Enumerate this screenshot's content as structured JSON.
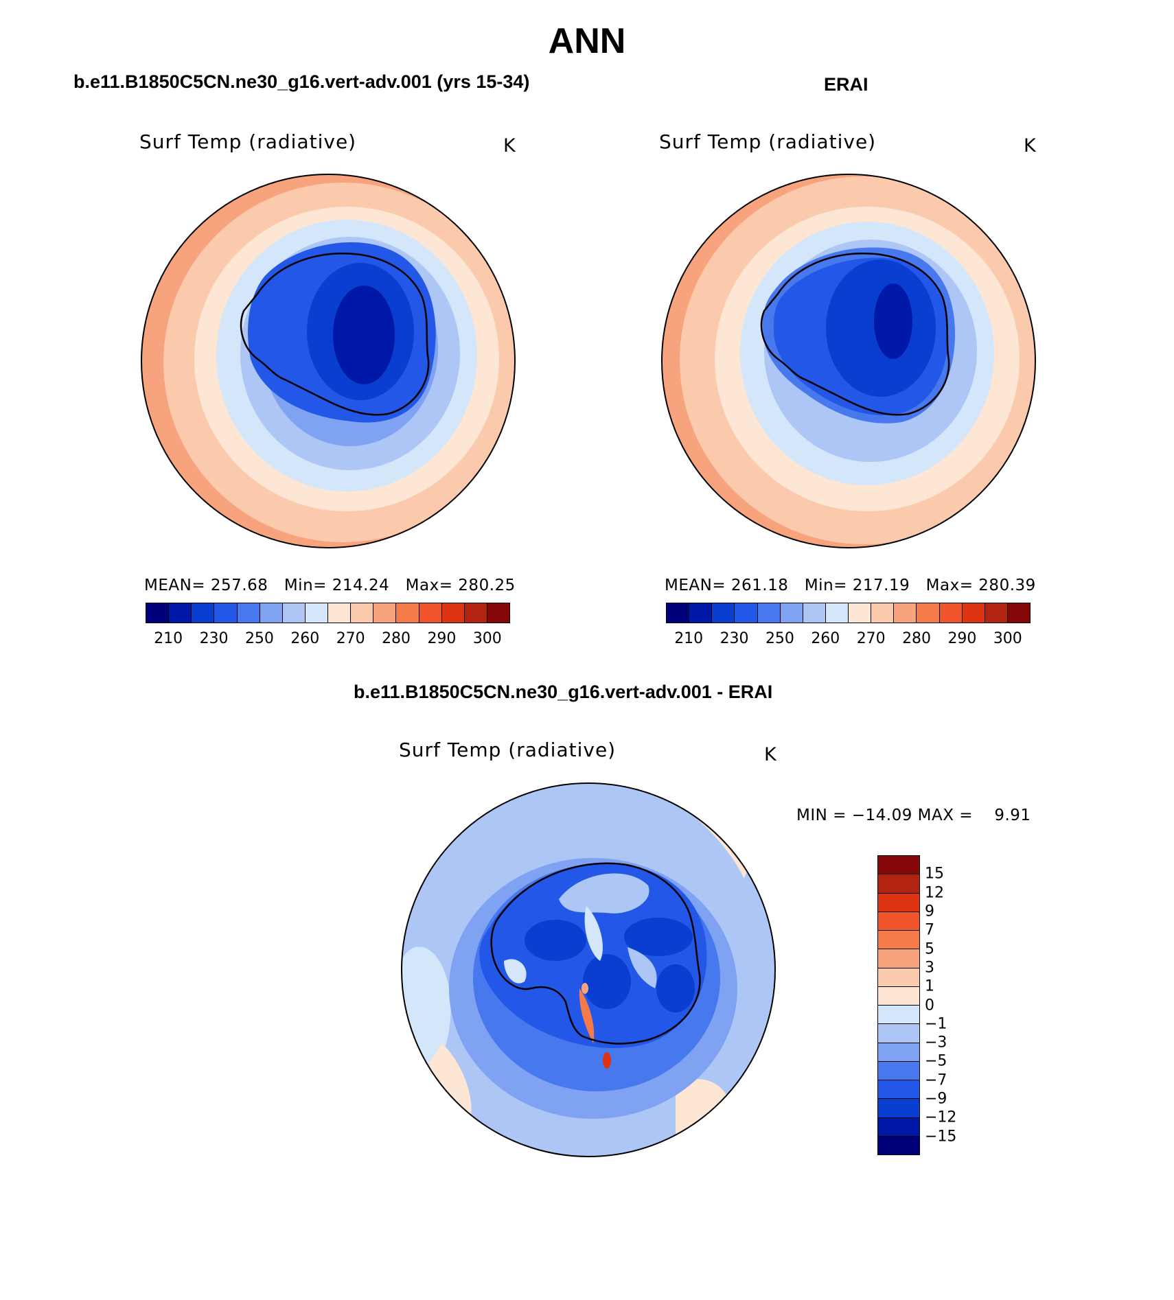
{
  "title": "ANN",
  "panels": {
    "model": {
      "case_title": "b.e11.B1850C5CN.ne30_g16.vert-adv.001 (yrs 15-34)",
      "variable": "Surf Temp (radiative)",
      "units": "K",
      "mean_label": "MEAN=",
      "mean": "257.68",
      "min_label": "Min=",
      "min": "214.24",
      "max_label": "Max=",
      "max": "280.25"
    },
    "obs": {
      "case_title": "ERAI",
      "variable": "Surf Temp (radiative)",
      "units": "K",
      "mean_label": "MEAN=",
      "mean": "261.18",
      "min_label": "Min=",
      "min": "217.19",
      "max_label": "Max=",
      "max": "280.39"
    },
    "diff": {
      "case_title": "b.e11.B1850C5CN.ne30_g16.vert-adv.001 - ERAI",
      "variable": "Surf Temp (radiative)",
      "units": "K",
      "minmax": "MIN = −14.09 MAX =    9.91"
    }
  },
  "abs_colorbar": {
    "ticks": [
      "210",
      "230",
      "250",
      "260",
      "270",
      "280",
      "290",
      "300"
    ],
    "colors": [
      "#00007a",
      "#0018a8",
      "#0a3ed0",
      "#2257e8",
      "#4878ee",
      "#7fa2f2",
      "#aec6f6",
      "#d4e6fa",
      "#fde6d4",
      "#fbc9ac",
      "#f7a37e",
      "#f47a4a",
      "#f0542a",
      "#dd3414",
      "#b32410",
      "#850808"
    ]
  },
  "diff_colorbar": {
    "ticks": [
      "15",
      "12",
      "9",
      "7",
      "5",
      "3",
      "1",
      "0",
      "−1",
      "−3",
      "−5",
      "−7",
      "−9",
      "−12",
      "−15"
    ],
    "colors": [
      "#850808",
      "#b32410",
      "#dd3414",
      "#f0542a",
      "#f47a4a",
      "#f7a37e",
      "#fbc9ac",
      "#fde6d4",
      "#d4e6fa",
      "#aec6f6",
      "#7fa2f2",
      "#4878ee",
      "#2257e8",
      "#0a3ed0",
      "#0018a8",
      "#00007a"
    ]
  }
}
